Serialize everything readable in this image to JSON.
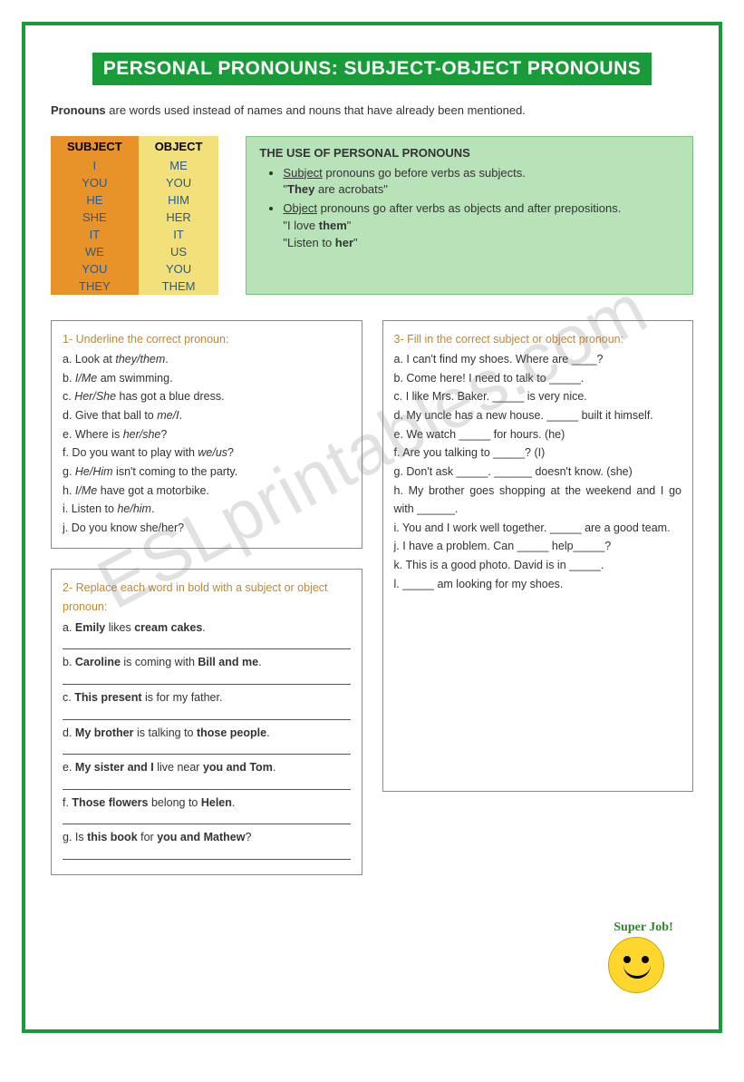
{
  "colors": {
    "frame": "#1a9b3a",
    "title_bg": "#1a9b3a",
    "title_fg": "#ffffff",
    "subj_bg": "#e8932a",
    "obj_bg": "#f2e07a",
    "cell_fg": "#2a5a8a",
    "usebox_bg": "#b8e2b8",
    "usebox_border": "#7ac47a",
    "ex_title": "#c08830",
    "watermark": "rgba(120,120,120,0.22)"
  },
  "title": "PERSONAL PRONOUNS: SUBJECT-OBJECT PRONOUNS",
  "intro_bold": "Pronouns",
  "intro_rest": " are words used instead of names and nouns that have already been mentioned.",
  "table": {
    "head_subject": "SUBJECT",
    "head_object": "OBJECT",
    "rows": [
      {
        "s": "I",
        "o": "ME"
      },
      {
        "s": "YOU",
        "o": "YOU"
      },
      {
        "s": "HE",
        "o": "HIM"
      },
      {
        "s": "SHE",
        "o": "HER"
      },
      {
        "s": "IT",
        "o": "IT"
      },
      {
        "s": "WE",
        "o": "US"
      },
      {
        "s": "YOU",
        "o": "YOU"
      },
      {
        "s": "THEY",
        "o": "THEM"
      }
    ]
  },
  "use": {
    "title": "THE USE OF PERSONAL PRONOUNS",
    "b1_u": "Subject",
    "b1_rest": " pronouns go before verbs as subjects.",
    "b1_ex": "\"They are acrobats\"",
    "b1_ex_bold": "They",
    "b2_u": "Object",
    "b2_rest": " pronouns go after verbs as objects and after prepositions.",
    "b2_ex1": "\"I love them\"",
    "b2_ex1_bold": "them",
    "b2_ex2": "\"Listen to her\"",
    "b2_ex2_bold": "her"
  },
  "ex1": {
    "title": "1- Underline the correct pronoun:",
    "items": [
      "a. Look at <i>they/them</i>.",
      "b. <i>I/Me</i> am swimming.",
      "c. <i>Her/She</i> has got a blue dress.",
      "d. Give that ball to <i>me/I</i>.",
      "e. Where is <i>her/she</i>?",
      "f. Do you want to play with <i>we/us</i>?",
      "g. <i>He/Him</i> isn't coming to the party.",
      "h. <i>I/Me</i> have got a motorbike.",
      "i. Listen to <i>he/him</i>.",
      "j. Do you know she/her?"
    ]
  },
  "ex2": {
    "title": "2- Replace each word in bold with a subject or object pronoun:",
    "items": [
      "a. <b>Emily</b> likes <b>cream cakes</b>.",
      "b. <b>Caroline</b> is coming with <b>Bill and me</b>.",
      "c. <b>This present</b> is for my father.",
      "d. <b>My brother</b> is talking to <b>those people</b>.",
      "e. <b>My sister and I</b> live near <b>you and Tom</b>.",
      "f. <b>Those flowers</b> belong to <b>Helen</b>.",
      "g. Is <b>this book</b> for <b>you and Mathew</b>?"
    ]
  },
  "ex3": {
    "title": "3- Fill in the correct subject or object pronoun:",
    "items": [
      "a. I can't find my shoes. Where are ____?",
      "b. Come here! I need to talk to _____.",
      "c. I like Mrs. Baker. _____ is very nice.",
      "d. My uncle has a new house. _____ built it himself.",
      "e. We watch _____ for hours. (he)",
      "f. Are you talking to _____? (I)",
      "g. Don't ask _____. ______ doesn't know. (she)",
      "h. My brother goes shopping at the weekend and I go with ______.",
      "i. You and I work well together. _____ are a good team.",
      "j. I have a problem. Can _____ help_____?",
      "k. This is a good photo. David is in _____.",
      "l. _____ am looking for my shoes."
    ]
  },
  "sticker_text": "Super Job!",
  "watermark": "ESLprintables.com"
}
